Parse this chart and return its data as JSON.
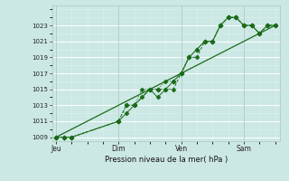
{
  "background_color": "#cce8e4",
  "grid_color": "#ffffff",
  "grid_minor_color": "#e0f0ee",
  "line_color": "#1a6b1a",
  "x_tick_labels": [
    "Jeu",
    "Dim",
    "Ven",
    "Sam"
  ],
  "x_tick_positions": [
    0,
    48,
    96,
    144
  ],
  "xlabel_text": "Pression niveau de la mer( hPa )",
  "ylim_min": 1008.5,
  "ylim_max": 1025.5,
  "yticks": [
    1009,
    1011,
    1013,
    1015,
    1017,
    1019,
    1021,
    1023
  ],
  "xlim_min": -3,
  "xlim_max": 172,
  "series1_x": [
    0,
    6,
    12,
    48,
    54,
    60,
    72,
    78,
    84,
    90,
    96,
    102,
    108,
    114,
    120,
    126,
    132,
    138,
    144,
    150,
    156,
    162,
    168
  ],
  "series1_y": [
    1009,
    1009,
    1009,
    1011,
    1013,
    1013,
    1015,
    1015,
    1015,
    1015,
    1017,
    1019,
    1019,
    1021,
    1021,
    1023,
    1024,
    1024,
    1023,
    1023,
    1022,
    1023,
    1023
  ],
  "series2_x": [
    0,
    6,
    12,
    48,
    54,
    60,
    66,
    72,
    78,
    84,
    90,
    96,
    102,
    108,
    114,
    120,
    126,
    132,
    138,
    144,
    150,
    156,
    162,
    168
  ],
  "series2_y": [
    1009,
    1009,
    1009,
    1011,
    1013,
    1013,
    1015,
    1015,
    1015,
    1016,
    1016,
    1017,
    1019,
    1020,
    1021,
    1021,
    1023,
    1024,
    1024,
    1023,
    1023,
    1022,
    1023,
    1023
  ],
  "series3_x": [
    0,
    168
  ],
  "series3_y": [
    1009,
    1023
  ],
  "series4_x": [
    0,
    6,
    12,
    48,
    54,
    60,
    66,
    72,
    78,
    84,
    90,
    96,
    102,
    108,
    114,
    120,
    126,
    132,
    138,
    144,
    150,
    156,
    162,
    168
  ],
  "series4_y": [
    1009,
    1009,
    1009,
    1011,
    1012,
    1013,
    1014,
    1015,
    1014,
    1015,
    1016,
    1017,
    1019,
    1020,
    1021,
    1021,
    1023,
    1024,
    1024,
    1023,
    1023,
    1022,
    1023,
    1023
  ],
  "xlabel_fontsize": 6.0,
  "tick_fontsize": 5.0,
  "linewidth": 0.7,
  "marker_size": 2.5
}
